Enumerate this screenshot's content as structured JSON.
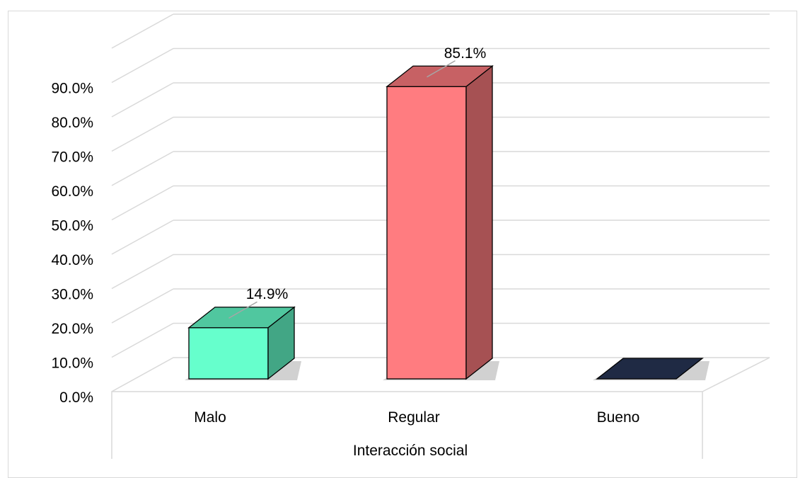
{
  "chart_data": {
    "type": "bar",
    "style": "3d-column",
    "categories": [
      "Malo",
      "Regular",
      "Bueno"
    ],
    "values": [
      14.9,
      85.1,
      0.0
    ],
    "data_labels": [
      "14.9%",
      "85.1%",
      ""
    ],
    "colors": [
      "#66FFCC",
      "#FF7C80",
      "#1F2A44"
    ],
    "xlabel": "Interacción social",
    "ylabel": "",
    "ylim": [
      0,
      90
    ],
    "yticks": [
      "0.0%",
      "10.0%",
      "20.0%",
      "30.0%",
      "40.0%",
      "50.0%",
      "60.0%",
      "70.0%",
      "80.0%",
      "90.0%"
    ],
    "grid": true,
    "legend": "none"
  }
}
